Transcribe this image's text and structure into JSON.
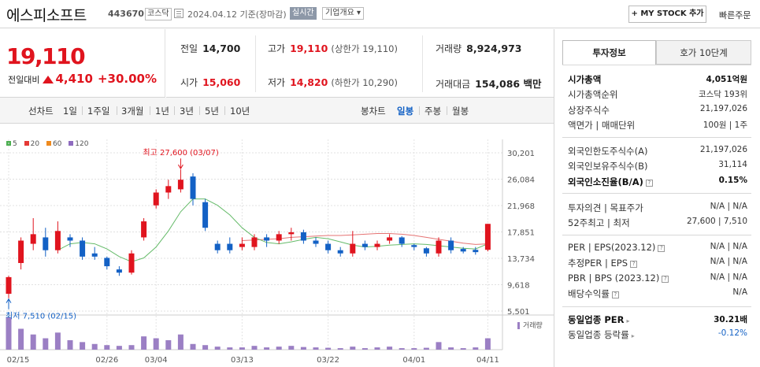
{
  "header": {
    "name": "에스피소프트",
    "code": "443670",
    "market": "코스닥",
    "date": "2024.04.12  기준(장마감)",
    "realtime": "실시간",
    "company_overview": "기업개요 ▾",
    "mystock": "MY STOCK 추가",
    "quick_order": "빠른주문"
  },
  "price": {
    "current": "19,110",
    "change_label": "전일대비",
    "change": "4,410",
    "change_pct": "+30.00%"
  },
  "price_grid": {
    "prev_label": "전일",
    "prev": "14,700",
    "high_label": "고가",
    "high": "19,110",
    "upper_limit": "(상한가 19,110)",
    "volume_label": "거래량",
    "volume": "8,924,973",
    "open_label": "시가",
    "open": "15,060",
    "low_label": "저가",
    "low": "14,820",
    "lower_limit": "(하한가 10,290)",
    "amount_label": "거래대금",
    "amount": "154,086 백만"
  },
  "chart_tabs": {
    "line_label": "선차트",
    "line_items": [
      "1일",
      "1주일",
      "3개월",
      "1년",
      "3년",
      "5년",
      "10년"
    ],
    "candle_label": "봉차트",
    "candle_items": [
      "일봉",
      "주봉",
      "월봉"
    ],
    "selected": "일봉"
  },
  "chart_data": {
    "type": "candlestick",
    "legend": [
      {
        "name": "5",
        "color": "#4caf50"
      },
      {
        "name": "20",
        "color": "#e53935"
      },
      {
        "name": "60",
        "color": "#ef8a1e"
      },
      {
        "name": "120",
        "color": "#8e6bbf"
      }
    ],
    "y_ticks": [
      "30,201",
      "26,084",
      "21,968",
      "17,851",
      "13,734",
      "9,618",
      "5,501"
    ],
    "x_ticks": [
      "02/15",
      "02/26",
      "03/04",
      "03/13",
      "03/22",
      "04/01",
      "04/11"
    ],
    "high_annotation": "최고 27,600 (03/07)",
    "low_annotation": "최저 7,510 (02/15)",
    "volume_label": "거래량",
    "candles": [
      {
        "o": 8200,
        "h": 11000,
        "l": 7510,
        "c": 10800
      },
      {
        "o": 13000,
        "h": 17000,
        "l": 12000,
        "c": 16500
      },
      {
        "o": 16000,
        "h": 20000,
        "l": 15000,
        "c": 17500
      },
      {
        "o": 17000,
        "h": 18500,
        "l": 14000,
        "c": 15000
      },
      {
        "o": 15000,
        "h": 19500,
        "l": 14500,
        "c": 18000
      },
      {
        "o": 17000,
        "h": 17500,
        "l": 15500,
        "c": 16500
      },
      {
        "o": 16500,
        "h": 17000,
        "l": 13500,
        "c": 14000
      },
      {
        "o": 14500,
        "h": 15500,
        "l": 13500,
        "c": 14000
      },
      {
        "o": 13800,
        "h": 14000,
        "l": 12000,
        "c": 12500
      },
      {
        "o": 12000,
        "h": 12500,
        "l": 11000,
        "c": 11500
      },
      {
        "o": 11500,
        "h": 15000,
        "l": 11200,
        "c": 14500
      },
      {
        "o": 17000,
        "h": 20000,
        "l": 16500,
        "c": 19500
      },
      {
        "o": 22000,
        "h": 24500,
        "l": 21500,
        "c": 24000
      },
      {
        "o": 24000,
        "h": 26000,
        "l": 23000,
        "c": 25000
      },
      {
        "o": 24500,
        "h": 27600,
        "l": 24000,
        "c": 26000
      },
      {
        "o": 26500,
        "h": 27000,
        "l": 22000,
        "c": 23000
      },
      {
        "o": 22500,
        "h": 23000,
        "l": 18000,
        "c": 18500
      },
      {
        "o": 16000,
        "h": 16500,
        "l": 14500,
        "c": 15000
      },
      {
        "o": 16000,
        "h": 17000,
        "l": 14500,
        "c": 15000
      },
      {
        "o": 15500,
        "h": 17000,
        "l": 15000,
        "c": 16000
      },
      {
        "o": 15500,
        "h": 17500,
        "l": 15000,
        "c": 17000
      },
      {
        "o": 17000,
        "h": 17500,
        "l": 15500,
        "c": 16500
      },
      {
        "o": 16500,
        "h": 18000,
        "l": 16000,
        "c": 17500
      },
      {
        "o": 17500,
        "h": 18500,
        "l": 16500,
        "c": 17800
      },
      {
        "o": 17800,
        "h": 18200,
        "l": 16000,
        "c": 16500
      },
      {
        "o": 16500,
        "h": 17000,
        "l": 15500,
        "c": 16000
      },
      {
        "o": 16000,
        "h": 16500,
        "l": 14500,
        "c": 15000
      },
      {
        "o": 15000,
        "h": 15500,
        "l": 14000,
        "c": 14500
      },
      {
        "o": 14500,
        "h": 18000,
        "l": 14000,
        "c": 16000
      },
      {
        "o": 16000,
        "h": 16500,
        "l": 15000,
        "c": 15500
      },
      {
        "o": 15500,
        "h": 16500,
        "l": 15000,
        "c": 16000
      },
      {
        "o": 16500,
        "h": 17500,
        "l": 16000,
        "c": 17000
      },
      {
        "o": 17000,
        "h": 17200,
        "l": 15500,
        "c": 16000
      },
      {
        "o": 15800,
        "h": 16000,
        "l": 15000,
        "c": 15500
      },
      {
        "o": 15300,
        "h": 15500,
        "l": 14000,
        "c": 14500
      },
      {
        "o": 14500,
        "h": 17000,
        "l": 14000,
        "c": 16500
      },
      {
        "o": 16500,
        "h": 17000,
        "l": 14500,
        "c": 15000
      },
      {
        "o": 15200,
        "h": 15500,
        "l": 14500,
        "c": 14800
      },
      {
        "o": 15060,
        "h": 15500,
        "l": 14300,
        "c": 14700
      },
      {
        "o": 15060,
        "h": 19110,
        "l": 14820,
        "c": 19110
      }
    ],
    "volume": [
      85,
      55,
      40,
      30,
      45,
      25,
      20,
      15,
      12,
      10,
      12,
      35,
      30,
      25,
      40,
      15,
      12,
      8,
      6,
      6,
      10,
      6,
      8,
      10,
      7,
      6,
      5,
      4,
      8,
      4,
      6,
      8,
      4,
      4,
      5,
      20,
      6,
      4,
      6,
      30
    ],
    "ma5": [
      null,
      null,
      null,
      null,
      15000,
      16000,
      16200,
      16000,
      15200,
      14000,
      13200,
      13800,
      15500,
      18000,
      21000,
      23000,
      23000,
      22000,
      20500,
      18500,
      17000,
      16200,
      16000,
      16300,
      16700,
      17000,
      16800,
      16300,
      15800,
      15500,
      15600,
      15800,
      15900,
      16000,
      15900,
      15700,
      15500,
      15300,
      15200,
      16000
    ],
    "ma20": [
      null,
      null,
      null,
      null,
      null,
      null,
      null,
      null,
      null,
      null,
      null,
      null,
      null,
      null,
      null,
      null,
      null,
      null,
      null,
      16500,
      16600,
      16700,
      16800,
      17000,
      17100,
      17200,
      17300,
      17300,
      17400,
      17500,
      17600,
      17600,
      17500,
      17300,
      17000,
      16700,
      16400,
      16100,
      15900,
      16000
    ]
  },
  "side": {
    "tab_invest": "투자정보",
    "tab_hoga": "호가 10단계",
    "market_cap_label": "시가총액",
    "market_cap": "4,051억원",
    "cap_rank_label": "시가총액순위",
    "cap_rank": "코스닥 193위",
    "shares_label": "상장주식수",
    "shares": "21,197,026",
    "par_label": "액면가 | 매매단위",
    "par": "100원 | 1주",
    "foreign_limit_label": "외국인한도주식수(A)",
    "foreign_limit": "21,197,026",
    "foreign_hold_label": "외국인보유주식수(B)",
    "foreign_hold": "31,114",
    "foreign_ratio_label": "외국인소진율(B/A)",
    "foreign_ratio": "0.15%",
    "opinion_label": "투자의견 | 목표주가",
    "opinion": "N/A | N/A",
    "w52_label": "52주최고 | 최저",
    "w52": "27,600 | 7,510",
    "per_label": "PER | EPS(2023.12)",
    "per": "N/A | N/A",
    "est_per_label": "추정PER | EPS",
    "est_per": "N/A | N/A",
    "pbr_label": "PBR | BPS (2023.12)",
    "pbr": "N/A | N/A",
    "dividend_label": "배당수익률",
    "dividend": "N/A",
    "industry_per_label": "동일업종 PER",
    "industry_per": "30.21배",
    "industry_rate_label": "동일업종 등락률",
    "industry_rate": "-0.12%"
  }
}
